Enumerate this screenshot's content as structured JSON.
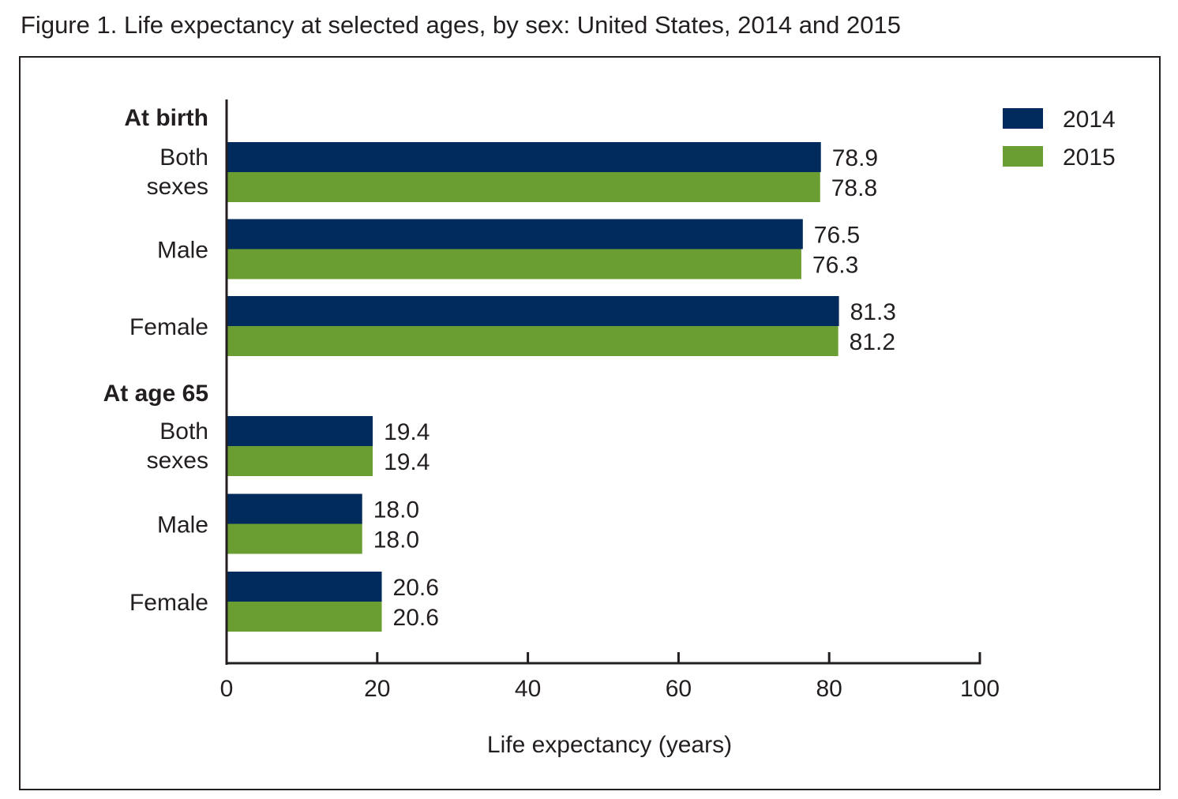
{
  "figure_title": "Figure 1. Life expectancy at selected ages, by sex: United States, 2014 and 2015",
  "colors": {
    "series_2014": "#002b5c",
    "series_2015": "#6b9e32",
    "text": "#231f20",
    "axis": "#231f20"
  },
  "chart_data": {
    "type": "bar",
    "orientation": "horizontal",
    "xlabel": "Life expectancy (years)",
    "xlim": [
      0,
      100
    ],
    "xticks": [
      "0",
      "20",
      "40",
      "60",
      "80",
      "100"
    ],
    "grid": false,
    "legend_position": "top-right",
    "groups": [
      {
        "label": "At birth",
        "categories": [
          {
            "label_lines": [
              "Both",
              "sexes"
            ],
            "values": [
              78.9,
              78.8
            ],
            "labels": [
              "78.9",
              "78.8"
            ]
          },
          {
            "label_lines": [
              "Male"
            ],
            "values": [
              76.5,
              76.3
            ],
            "labels": [
              "76.5",
              "76.3"
            ]
          },
          {
            "label_lines": [
              "Female"
            ],
            "values": [
              81.3,
              81.2
            ],
            "labels": [
              "81.3",
              "81.2"
            ]
          }
        ]
      },
      {
        "label": "At age 65",
        "categories": [
          {
            "label_lines": [
              "Both",
              "sexes"
            ],
            "values": [
              19.4,
              19.4
            ],
            "labels": [
              "19.4",
              "19.4"
            ]
          },
          {
            "label_lines": [
              "Male"
            ],
            "values": [
              18.0,
              18.0
            ],
            "labels": [
              "18.0",
              "18.0"
            ]
          },
          {
            "label_lines": [
              "Female"
            ],
            "values": [
              20.6,
              20.6
            ],
            "labels": [
              "20.6",
              "20.6"
            ]
          }
        ]
      }
    ],
    "series": [
      {
        "name": "2014"
      },
      {
        "name": "2015"
      }
    ]
  }
}
